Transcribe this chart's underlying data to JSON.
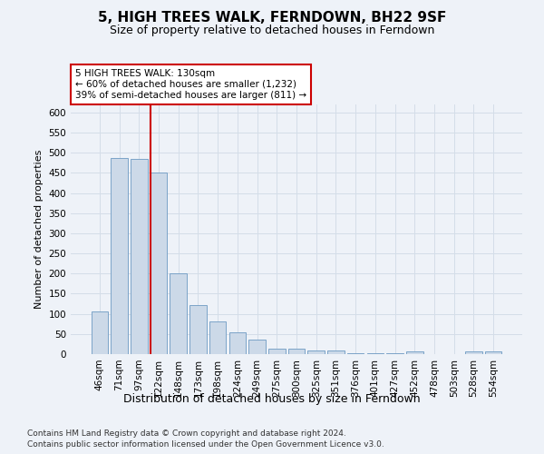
{
  "title": "5, HIGH TREES WALK, FERNDOWN, BH22 9SF",
  "subtitle": "Size of property relative to detached houses in Ferndown",
  "xlabel_bottom": "Distribution of detached houses by size in Ferndown",
  "ylabel": "Number of detached properties",
  "categories": [
    "46sqm",
    "71sqm",
    "97sqm",
    "122sqm",
    "148sqm",
    "173sqm",
    "198sqm",
    "224sqm",
    "249sqm",
    "275sqm",
    "300sqm",
    "325sqm",
    "351sqm",
    "376sqm",
    "401sqm",
    "427sqm",
    "452sqm",
    "478sqm",
    "503sqm",
    "528sqm",
    "554sqm"
  ],
  "values": [
    105,
    487,
    484,
    452,
    201,
    122,
    82,
    55,
    37,
    14,
    14,
    8,
    10,
    3,
    2,
    2,
    7,
    0,
    0,
    6,
    6
  ],
  "bar_color": "#ccd9e8",
  "bar_edge_color": "#7ba3c8",
  "red_line_index": 3,
  "annotation_text": "5 HIGH TREES WALK: 130sqm\n← 60% of detached houses are smaller (1,232)\n39% of semi-detached houses are larger (811) →",
  "annotation_box_color": "#ffffff",
  "annotation_box_edge_color": "#cc0000",
  "red_line_color": "#cc0000",
  "grid_color": "#d4dde8",
  "ylim": [
    0,
    620
  ],
  "yticks": [
    0,
    50,
    100,
    150,
    200,
    250,
    300,
    350,
    400,
    450,
    500,
    550,
    600
  ],
  "footer_line1": "Contains HM Land Registry data © Crown copyright and database right 2024.",
  "footer_line2": "Contains public sector information licensed under the Open Government Licence v3.0.",
  "bg_color": "#eef2f8",
  "title_fontsize": 11,
  "subtitle_fontsize": 9,
  "tick_fontsize": 7.5,
  "ylabel_fontsize": 8,
  "xlabel_bottom_fontsize": 9,
  "footer_fontsize": 6.5
}
